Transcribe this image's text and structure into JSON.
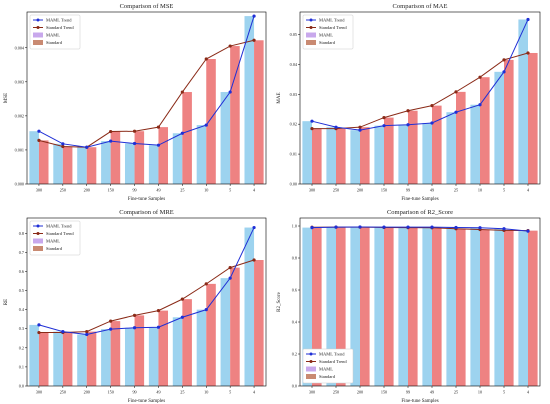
{
  "colors": {
    "maml_bar": "#9dd3ef",
    "standard_bar": "#ee8282",
    "maml_line": "#1f2fd6",
    "standard_line": "#8a2a17",
    "maml_legend_patch": "#c8a8ec",
    "standard_legend_patch": "#c98a72"
  },
  "chart_data": [
    {
      "type": "bar",
      "title": "Comparison of MSE",
      "xlabel": "Fine-tune Samples",
      "ylabel": "MSE",
      "categories": [
        "300",
        "250",
        "200",
        "150",
        "99",
        "49",
        "25",
        "10",
        "5",
        "4"
      ],
      "ylim": [
        0,
        0.00505
      ],
      "yticks": [
        0,
        0.001,
        0.002,
        0.003,
        0.004
      ],
      "ytick_labels": [
        "0.000",
        "0.001",
        "0.002",
        "0.003",
        "0.004"
      ],
      "series": [
        {
          "name": "MAML",
          "values": [
            0.00155,
            0.00118,
            0.00108,
            0.00126,
            0.00119,
            0.00114,
            0.00149,
            0.00173,
            0.0027,
            0.00493
          ]
        },
        {
          "name": "Standard",
          "values": [
            0.00128,
            0.0011,
            0.00108,
            0.00154,
            0.00155,
            0.00167,
            0.0027,
            0.00367,
            0.00405,
            0.00422
          ]
        }
      ],
      "legend": [
        "MAML Trend",
        "Standard Trend",
        "MAML",
        "Standard"
      ],
      "legend_position": "top-left",
      "grid": false
    },
    {
      "type": "bar",
      "title": "Comparison of MAE",
      "xlabel": "Fine-tune Samples",
      "ylabel": "MAE",
      "categories": [
        "300",
        "250",
        "200",
        "150",
        "99",
        "49",
        "25",
        "10",
        "5",
        "4"
      ],
      "ylim": [
        0,
        0.0575
      ],
      "yticks": [
        0,
        0.01,
        0.02,
        0.03,
        0.04,
        0.05
      ],
      "ytick_labels": [
        "0.00",
        "0.01",
        "0.02",
        "0.03",
        "0.04",
        "0.05"
      ],
      "series": [
        {
          "name": "MAML",
          "values": [
            0.021,
            0.019,
            0.018,
            0.0195,
            0.0198,
            0.0204,
            0.024,
            0.0265,
            0.0375,
            0.055
          ]
        },
        {
          "name": "Standard",
          "values": [
            0.0185,
            0.0185,
            0.019,
            0.0222,
            0.0245,
            0.0262,
            0.0308,
            0.0357,
            0.0415,
            0.0438
          ]
        }
      ],
      "legend": [
        "MAML Trend",
        "Standard Trend",
        "MAML",
        "Standard"
      ],
      "legend_position": "top-left",
      "grid": false
    },
    {
      "type": "bar",
      "title": "Comparison of MRE",
      "xlabel": "Fine-tune Samples",
      "ylabel": "RE",
      "categories": [
        "300",
        "250",
        "200",
        "150",
        "99",
        "49",
        "25",
        "10",
        "5",
        "4"
      ],
      "ylim": [
        0,
        0.88
      ],
      "yticks": [
        0,
        0.1,
        0.2,
        0.3,
        0.4,
        0.5,
        0.6,
        0.7,
        0.8
      ],
      "ytick_labels": [
        "0.0",
        "0.1",
        "0.2",
        "0.3",
        "0.4",
        "0.5",
        "0.6",
        "0.7",
        "0.8"
      ],
      "series": [
        {
          "name": "MAML",
          "values": [
            0.32,
            0.285,
            0.27,
            0.298,
            0.305,
            0.308,
            0.36,
            0.4,
            0.565,
            0.83
          ]
        },
        {
          "name": "Standard",
          "values": [
            0.28,
            0.28,
            0.285,
            0.34,
            0.37,
            0.395,
            0.455,
            0.535,
            0.62,
            0.66
          ]
        }
      ],
      "legend": [
        "MAML Trend",
        "Standard Trend",
        "MAML",
        "Standard"
      ],
      "legend_position": "top-left",
      "grid": false
    },
    {
      "type": "bar",
      "title": "Comparison of R2_Score",
      "xlabel": "Fine-tune Samples",
      "ylabel": "R2_Score",
      "categories": [
        "300",
        "250",
        "200",
        "150",
        "99",
        "49",
        "25",
        "10",
        "5",
        "4"
      ],
      "ylim": [
        0,
        1.05
      ],
      "yticks": [
        0,
        0.2,
        0.4,
        0.6,
        0.8,
        1.0
      ],
      "ytick_labels": [
        "0.0",
        "0.2",
        "0.4",
        "0.6",
        "0.8",
        "1.0"
      ],
      "series": [
        {
          "name": "MAML",
          "values": [
            0.99,
            0.993,
            0.994,
            0.993,
            0.993,
            0.993,
            0.991,
            0.989,
            0.983,
            0.968
          ]
        },
        {
          "name": "Standard",
          "values": [
            0.992,
            0.993,
            0.993,
            0.991,
            0.99,
            0.989,
            0.983,
            0.978,
            0.973,
            0.971
          ]
        }
      ],
      "legend": [
        "MAML Trend",
        "Standard Trend",
        "MAML",
        "Standard"
      ],
      "legend_position": "bottom-left",
      "grid": false
    }
  ]
}
